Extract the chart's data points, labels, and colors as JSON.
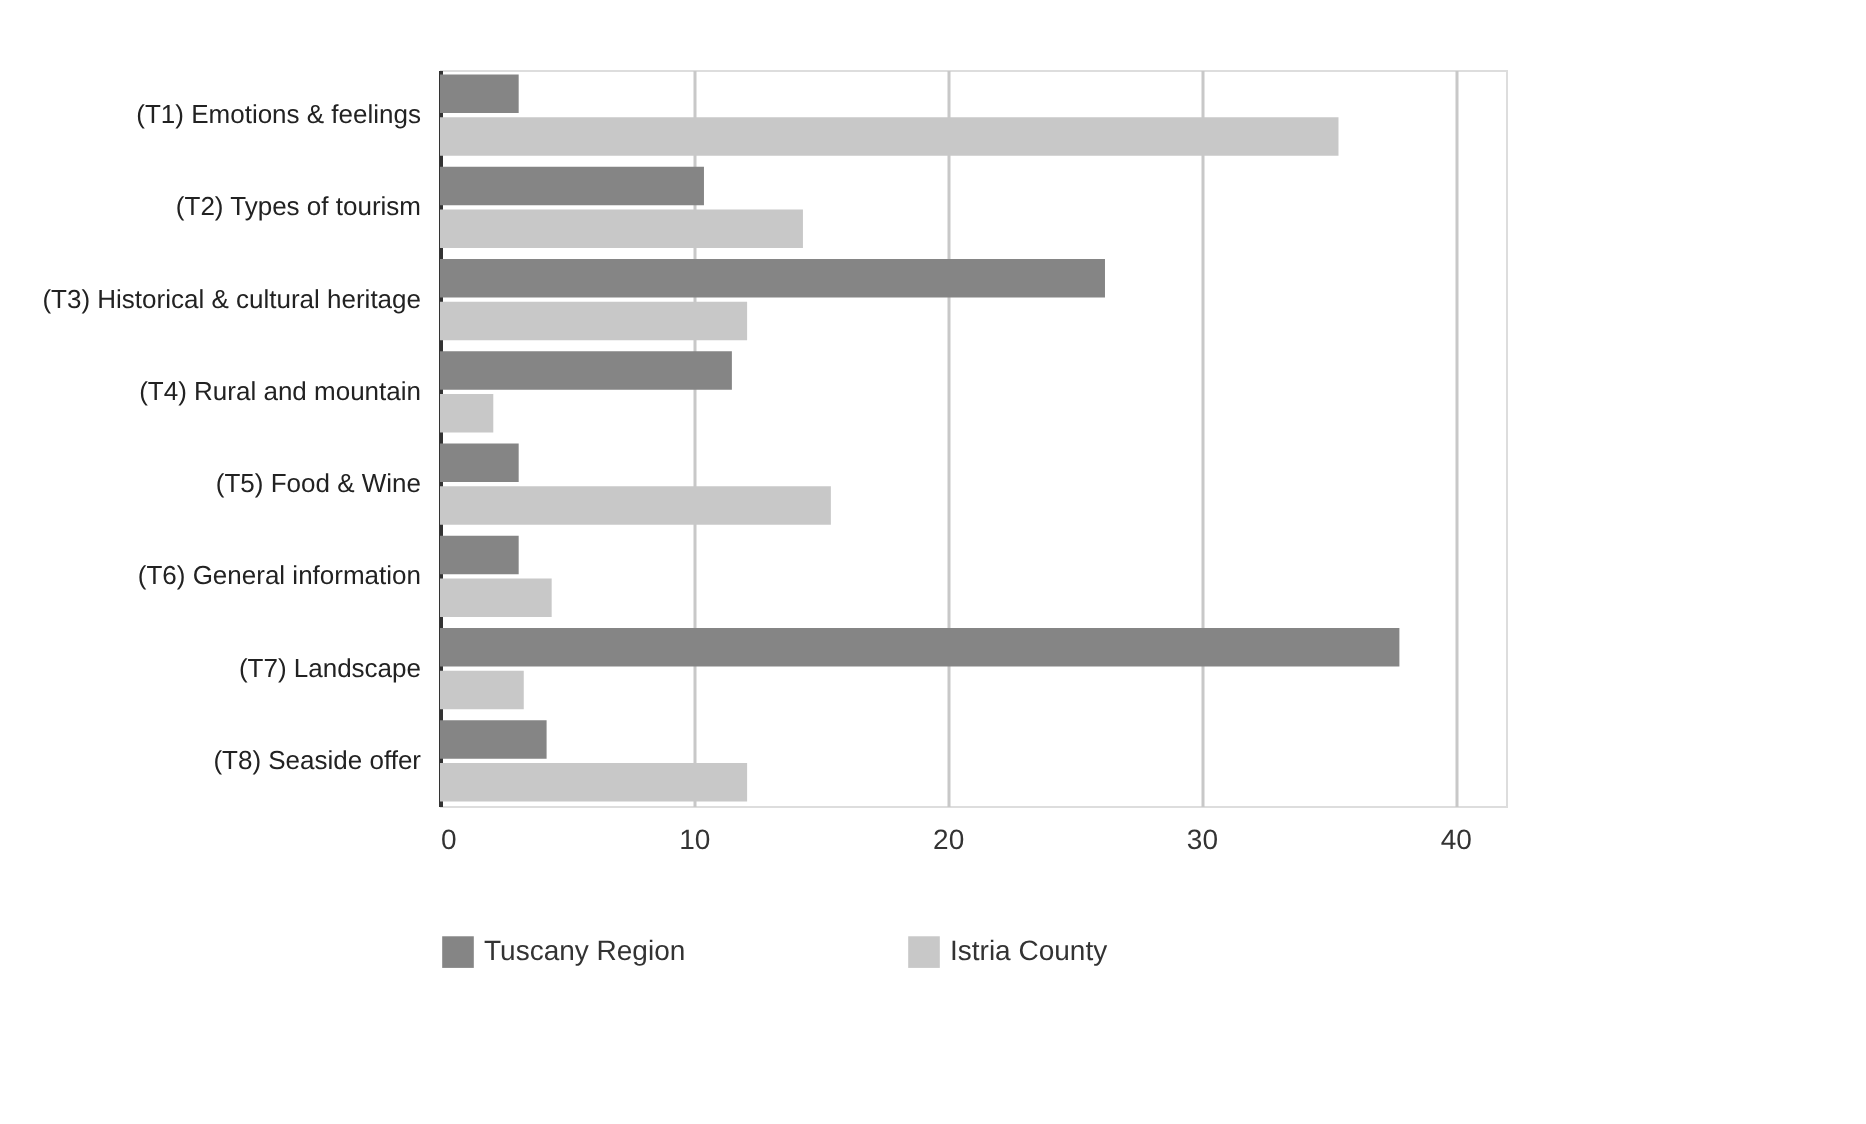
{
  "chart_data": {
    "type": "bar",
    "orientation": "horizontal",
    "categories": [
      "(T1) Emotions & feelings",
      "(T2) Types of tourism",
      "(T3) Historical & cultural heritage",
      "(T4) Rural and mountain",
      "(T5) Food & Wine",
      "(T6) General information",
      "(T7) Landscape",
      "(T8) Seaside offer"
    ],
    "series": [
      {
        "name": "Tuscany Region",
        "color": "#858585",
        "values": [
          3.1,
          10.4,
          26.2,
          11.5,
          3.1,
          3.1,
          37.8,
          4.2
        ]
      },
      {
        "name": "Istria County",
        "color": "#c8c8c8",
        "values": [
          35.4,
          14.3,
          12.1,
          2.1,
          15.4,
          4.4,
          3.3,
          12.1
        ]
      }
    ],
    "xlim": [
      0,
      42
    ],
    "xticks": [
      0,
      10,
      20,
      30,
      40
    ],
    "grid": "x",
    "legend": "bottom"
  }
}
